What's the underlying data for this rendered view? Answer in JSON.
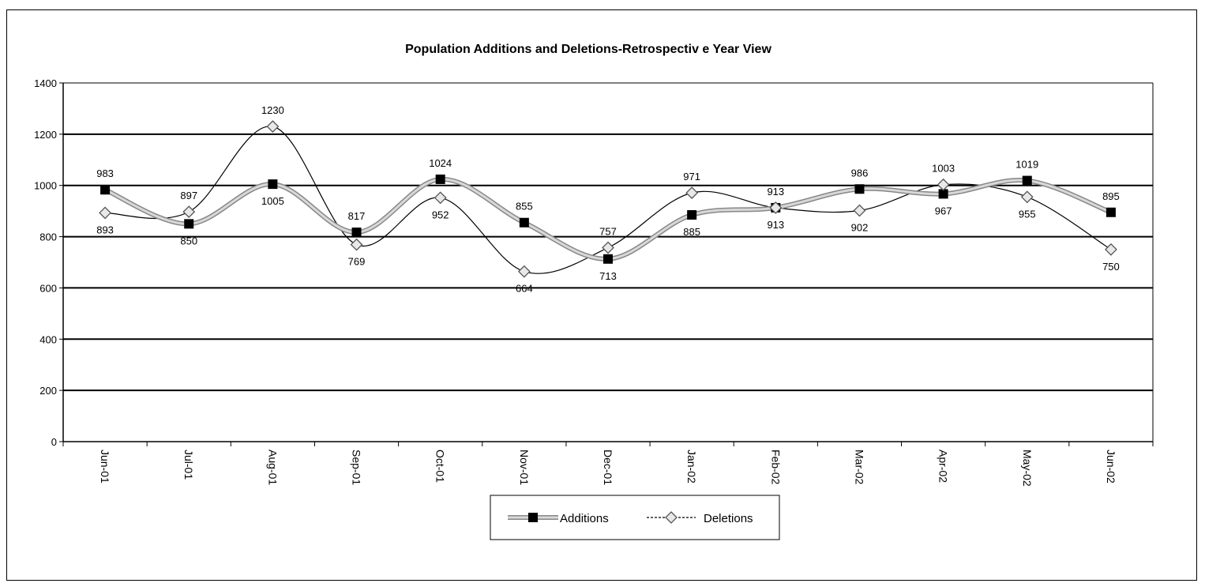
{
  "chart_data": {
    "type": "line",
    "title": "Population Additions and Deletions-Retrospectiv e Year View",
    "categories": [
      "Jun-01",
      "Jul-01",
      "Aug-01",
      "Sep-01",
      "Oct-01",
      "Nov-01",
      "Dec-01",
      "Jan-02",
      "Feb-02",
      "Mar-02",
      "Apr-02",
      "May-02",
      "Jun-02"
    ],
    "series": [
      {
        "name": "Additions",
        "values": [
          983,
          850,
          1005,
          817,
          1024,
          855,
          713,
          885,
          913,
          986,
          967,
          1019,
          895
        ],
        "marker": "square",
        "color": "#000000",
        "line_color": "#bbbbbb"
      },
      {
        "name": "Deletions",
        "values": [
          893,
          897,
          1230,
          769,
          952,
          664,
          757,
          971,
          913,
          902,
          1003,
          955,
          750
        ],
        "marker": "diamond",
        "color": "#555555",
        "line_color": "#000000"
      }
    ],
    "yticks": [
      "0",
      "200",
      "400",
      "600",
      "800",
      "1000",
      "1200",
      "1400"
    ],
    "ylim": [
      0,
      1400
    ],
    "xlabel": "",
    "ylabel": "",
    "grid": true,
    "legend": "bottom-center"
  }
}
